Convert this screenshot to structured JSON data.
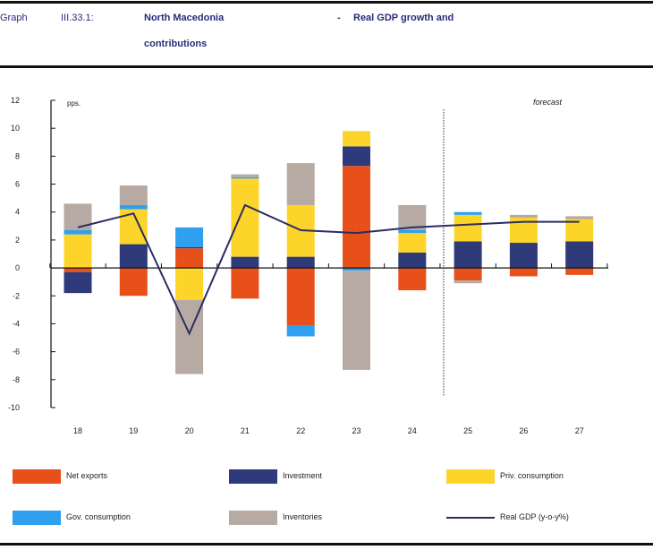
{
  "header": {
    "label": "Graph",
    "number": "III.33.1:",
    "title_part1": "North Macedonia",
    "dash": "-",
    "title_part2": "Real GDP growth and",
    "title_line2": "contributions"
  },
  "chart_data": {
    "type": "bar",
    "stacked": true,
    "ylabel": "pps.",
    "ylim": [
      -10,
      12
    ],
    "yticks": [
      12,
      10,
      8,
      6,
      4,
      2,
      0,
      -2,
      -4,
      -6,
      -8,
      -10
    ],
    "categories": [
      "18",
      "19",
      "20",
      "21",
      "22",
      "23",
      "24",
      "25",
      "26",
      "27"
    ],
    "annotation": "forecast",
    "forecast_start_after": "24",
    "grid": false,
    "legend_placement": "bottom",
    "series": [
      {
        "name": "Net exports",
        "color": "#E8501A",
        "values": [
          -0.3,
          -2.0,
          1.4,
          -2.2,
          -4.1,
          7.3,
          -1.6,
          -0.9,
          -0.6,
          -0.5
        ]
      },
      {
        "name": "Investment",
        "color": "#2E3A7A",
        "values": [
          -1.5,
          1.7,
          0.1,
          0.8,
          0.8,
          1.4,
          1.1,
          1.9,
          1.8,
          1.9
        ]
      },
      {
        "name": "Priv. consumption",
        "color": "#FDD52A",
        "values": [
          2.4,
          2.5,
          -2.3,
          5.6,
          3.7,
          1.1,
          1.4,
          1.9,
          1.8,
          1.6
        ]
      },
      {
        "name": "Gov. consumption",
        "color": "#2FA0F0",
        "values": [
          0.3,
          0.3,
          1.4,
          0.1,
          -0.8,
          -0.2,
          0.2,
          0.2,
          0.0,
          0.0
        ]
      },
      {
        "name": "Inventories",
        "color": "#B7AAA2",
        "values": [
          1.9,
          1.4,
          -5.3,
          0.2,
          3.0,
          -7.1,
          1.8,
          -0.2,
          0.2,
          0.2
        ]
      }
    ],
    "line": {
      "name": "Real GDP (y-o-y%)",
      "color": "#2B2D62",
      "values": [
        2.9,
        3.9,
        -4.7,
        4.5,
        2.7,
        2.5,
        2.9,
        3.1,
        3.3,
        3.3
      ]
    }
  }
}
